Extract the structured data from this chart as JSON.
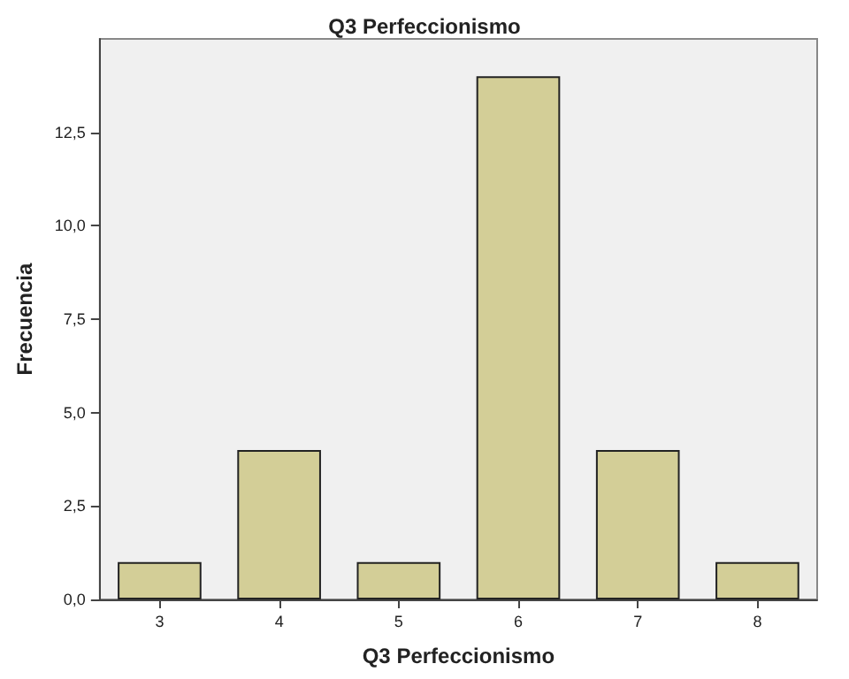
{
  "chart_data": {
    "type": "bar",
    "title": "Q3 Perfeccionismo",
    "xlabel": "Q3 Perfeccionismo",
    "ylabel": "Frecuencia",
    "categories": [
      "3",
      "4",
      "5",
      "6",
      "7",
      "8"
    ],
    "values": [
      1,
      4,
      1,
      14,
      4,
      1
    ],
    "color": "#d3ce97",
    "ylim": [
      0,
      15
    ],
    "yticks": [
      {
        "value": 0,
        "label": "0,0"
      },
      {
        "value": 2.5,
        "label": "2,5"
      },
      {
        "value": 5,
        "label": "5,0"
      },
      {
        "value": 7.5,
        "label": "7,5"
      },
      {
        "value": 10,
        "label": "10,0"
      },
      {
        "value": 12.5,
        "label": "12,5"
      }
    ],
    "grid": false
  }
}
